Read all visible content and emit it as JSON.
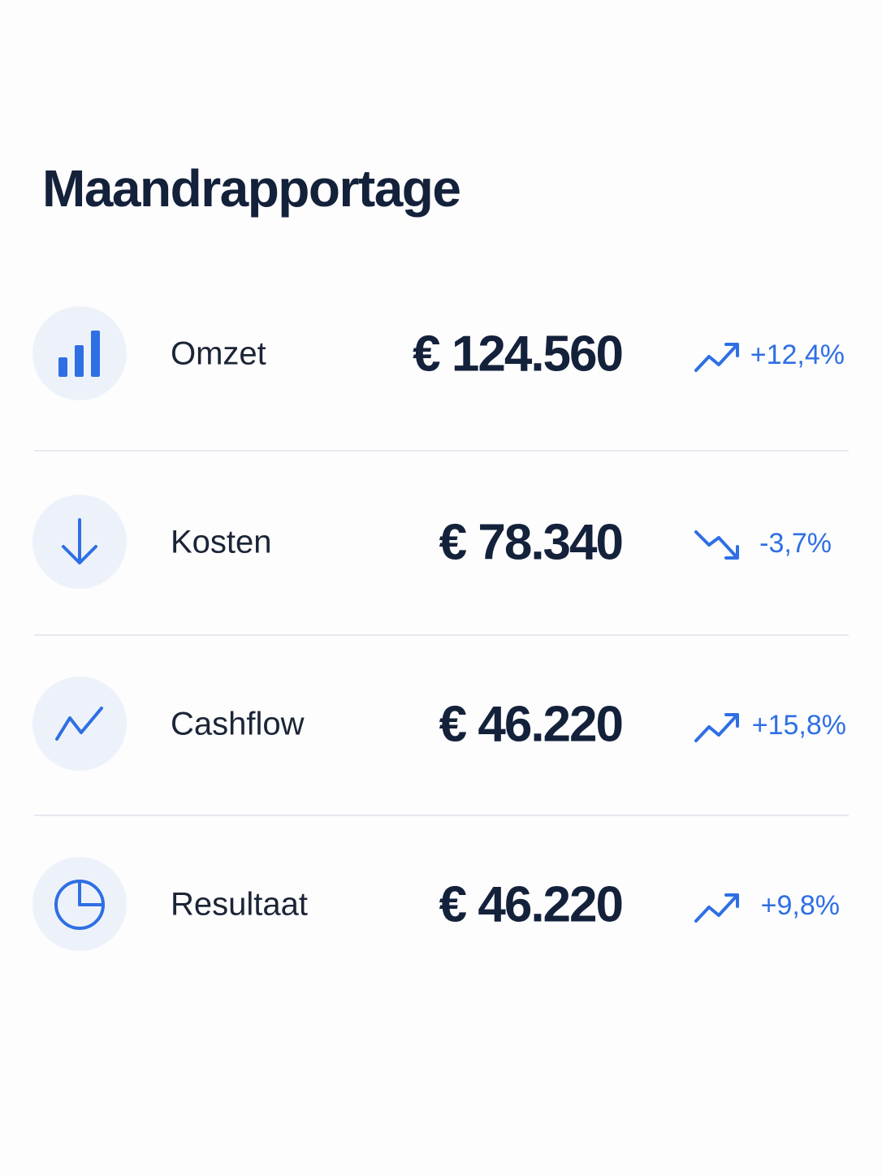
{
  "header": {
    "title": "Maandrapportage"
  },
  "rows": [
    {
      "label": "Omzet",
      "value": "€ 124.560",
      "change": "+12,4%"
    },
    {
      "label": "Kosten",
      "value": "€ 78.340",
      "change": "-3,7%"
    },
    {
      "label": "Cashflow",
      "value": "€ 46.220",
      "change": "+15,8%"
    },
    {
      "label": "Resultaat",
      "value": "€ 46.220",
      "change": "+9,8%"
    }
  ]
}
